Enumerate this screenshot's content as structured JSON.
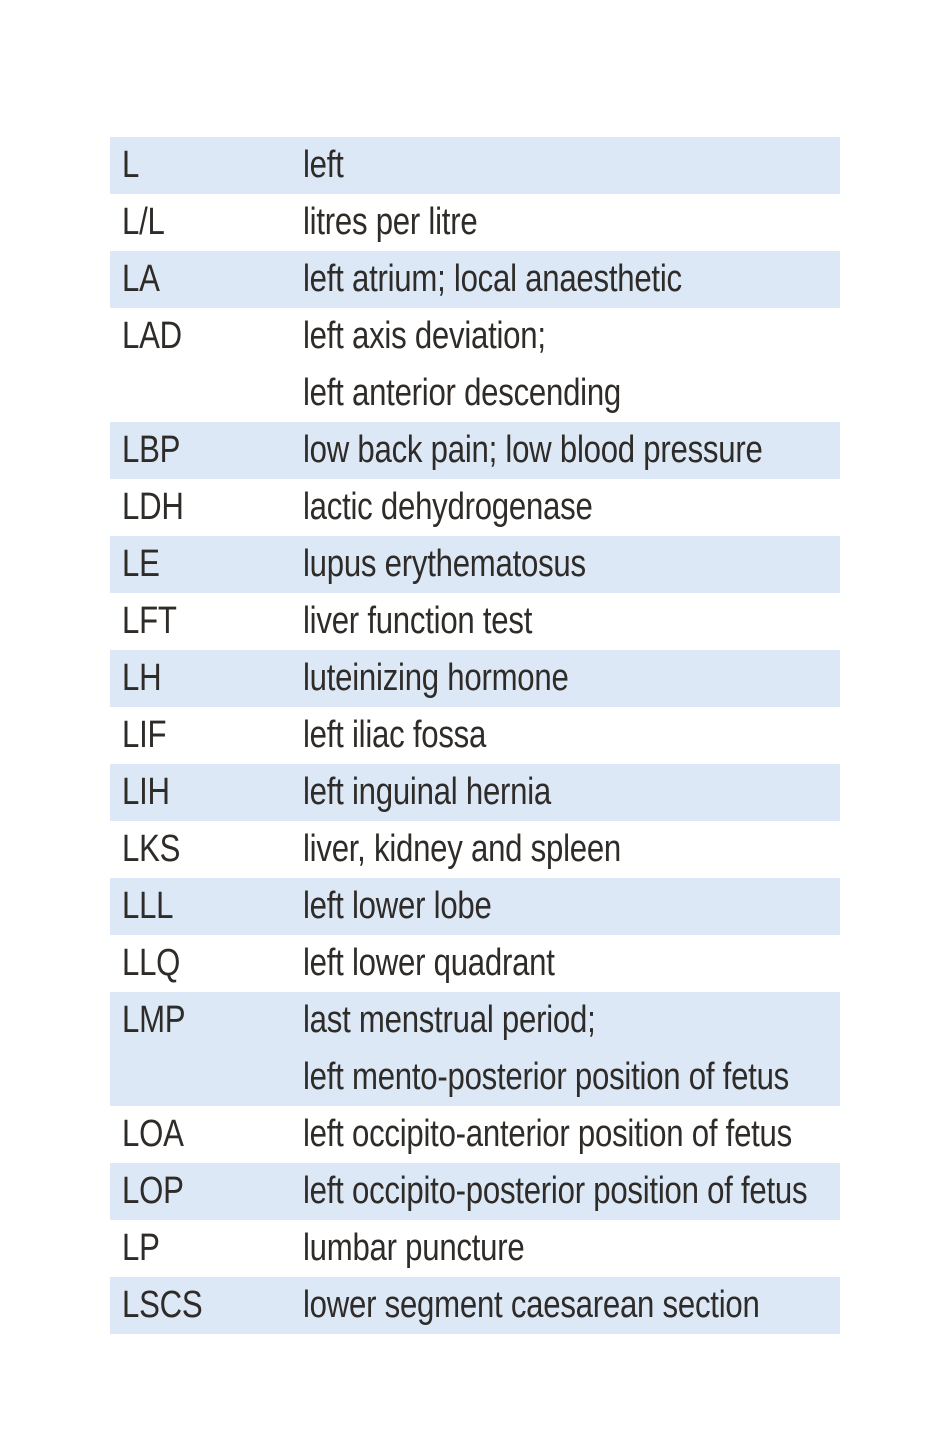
{
  "page": {
    "background_color": "#ffffff",
    "row_highlight_color": "#dce8f6",
    "text_color": "#2e2b28"
  },
  "abbreviations": {
    "entries": [
      {
        "abbr": "L",
        "def1": "left",
        "highlighted": true
      },
      {
        "abbr": "L/L",
        "def1": "litres per litre",
        "highlighted": false
      },
      {
        "abbr": "LA",
        "def1": "left atrium; local anaesthetic",
        "highlighted": true
      },
      {
        "abbr": "LAD",
        "def1": "left axis deviation;",
        "def2": "left anterior descending",
        "highlighted": false
      },
      {
        "abbr": "LBP",
        "def1": "low back pain; low blood pressure",
        "highlighted": true
      },
      {
        "abbr": "LDH",
        "def1": "lactic dehydrogenase",
        "highlighted": false
      },
      {
        "abbr": "LE",
        "def1": "lupus erythematosus",
        "highlighted": true
      },
      {
        "abbr": "LFT",
        "def1": "liver function test",
        "highlighted": false
      },
      {
        "abbr": "LH",
        "def1": "luteinizing hormone",
        "highlighted": true
      },
      {
        "abbr": "LIF",
        "def1": "left iliac fossa",
        "highlighted": false
      },
      {
        "abbr": "LIH",
        "def1": "left inguinal hernia",
        "highlighted": true
      },
      {
        "abbr": "LKS",
        "def1": "liver, kidney and spleen",
        "highlighted": false
      },
      {
        "abbr": "LLL",
        "def1": "left lower lobe",
        "highlighted": true
      },
      {
        "abbr": "LLQ",
        "def1": "left lower quadrant",
        "highlighted": false
      },
      {
        "abbr": "LMP",
        "def1": "last menstrual period;",
        "def2": "left mento-posterior position of fetus",
        "highlighted": true
      },
      {
        "abbr": "LOA",
        "def1": "left occipito-anterior position of fetus",
        "highlighted": false
      },
      {
        "abbr": "LOP",
        "def1": "left occipito-posterior position of fetus",
        "highlighted": true
      },
      {
        "abbr": "LP",
        "def1": "lumbar puncture",
        "highlighted": false
      },
      {
        "abbr": "LSCS",
        "def1": "lower segment caesarean section",
        "highlighted": true
      }
    ]
  }
}
